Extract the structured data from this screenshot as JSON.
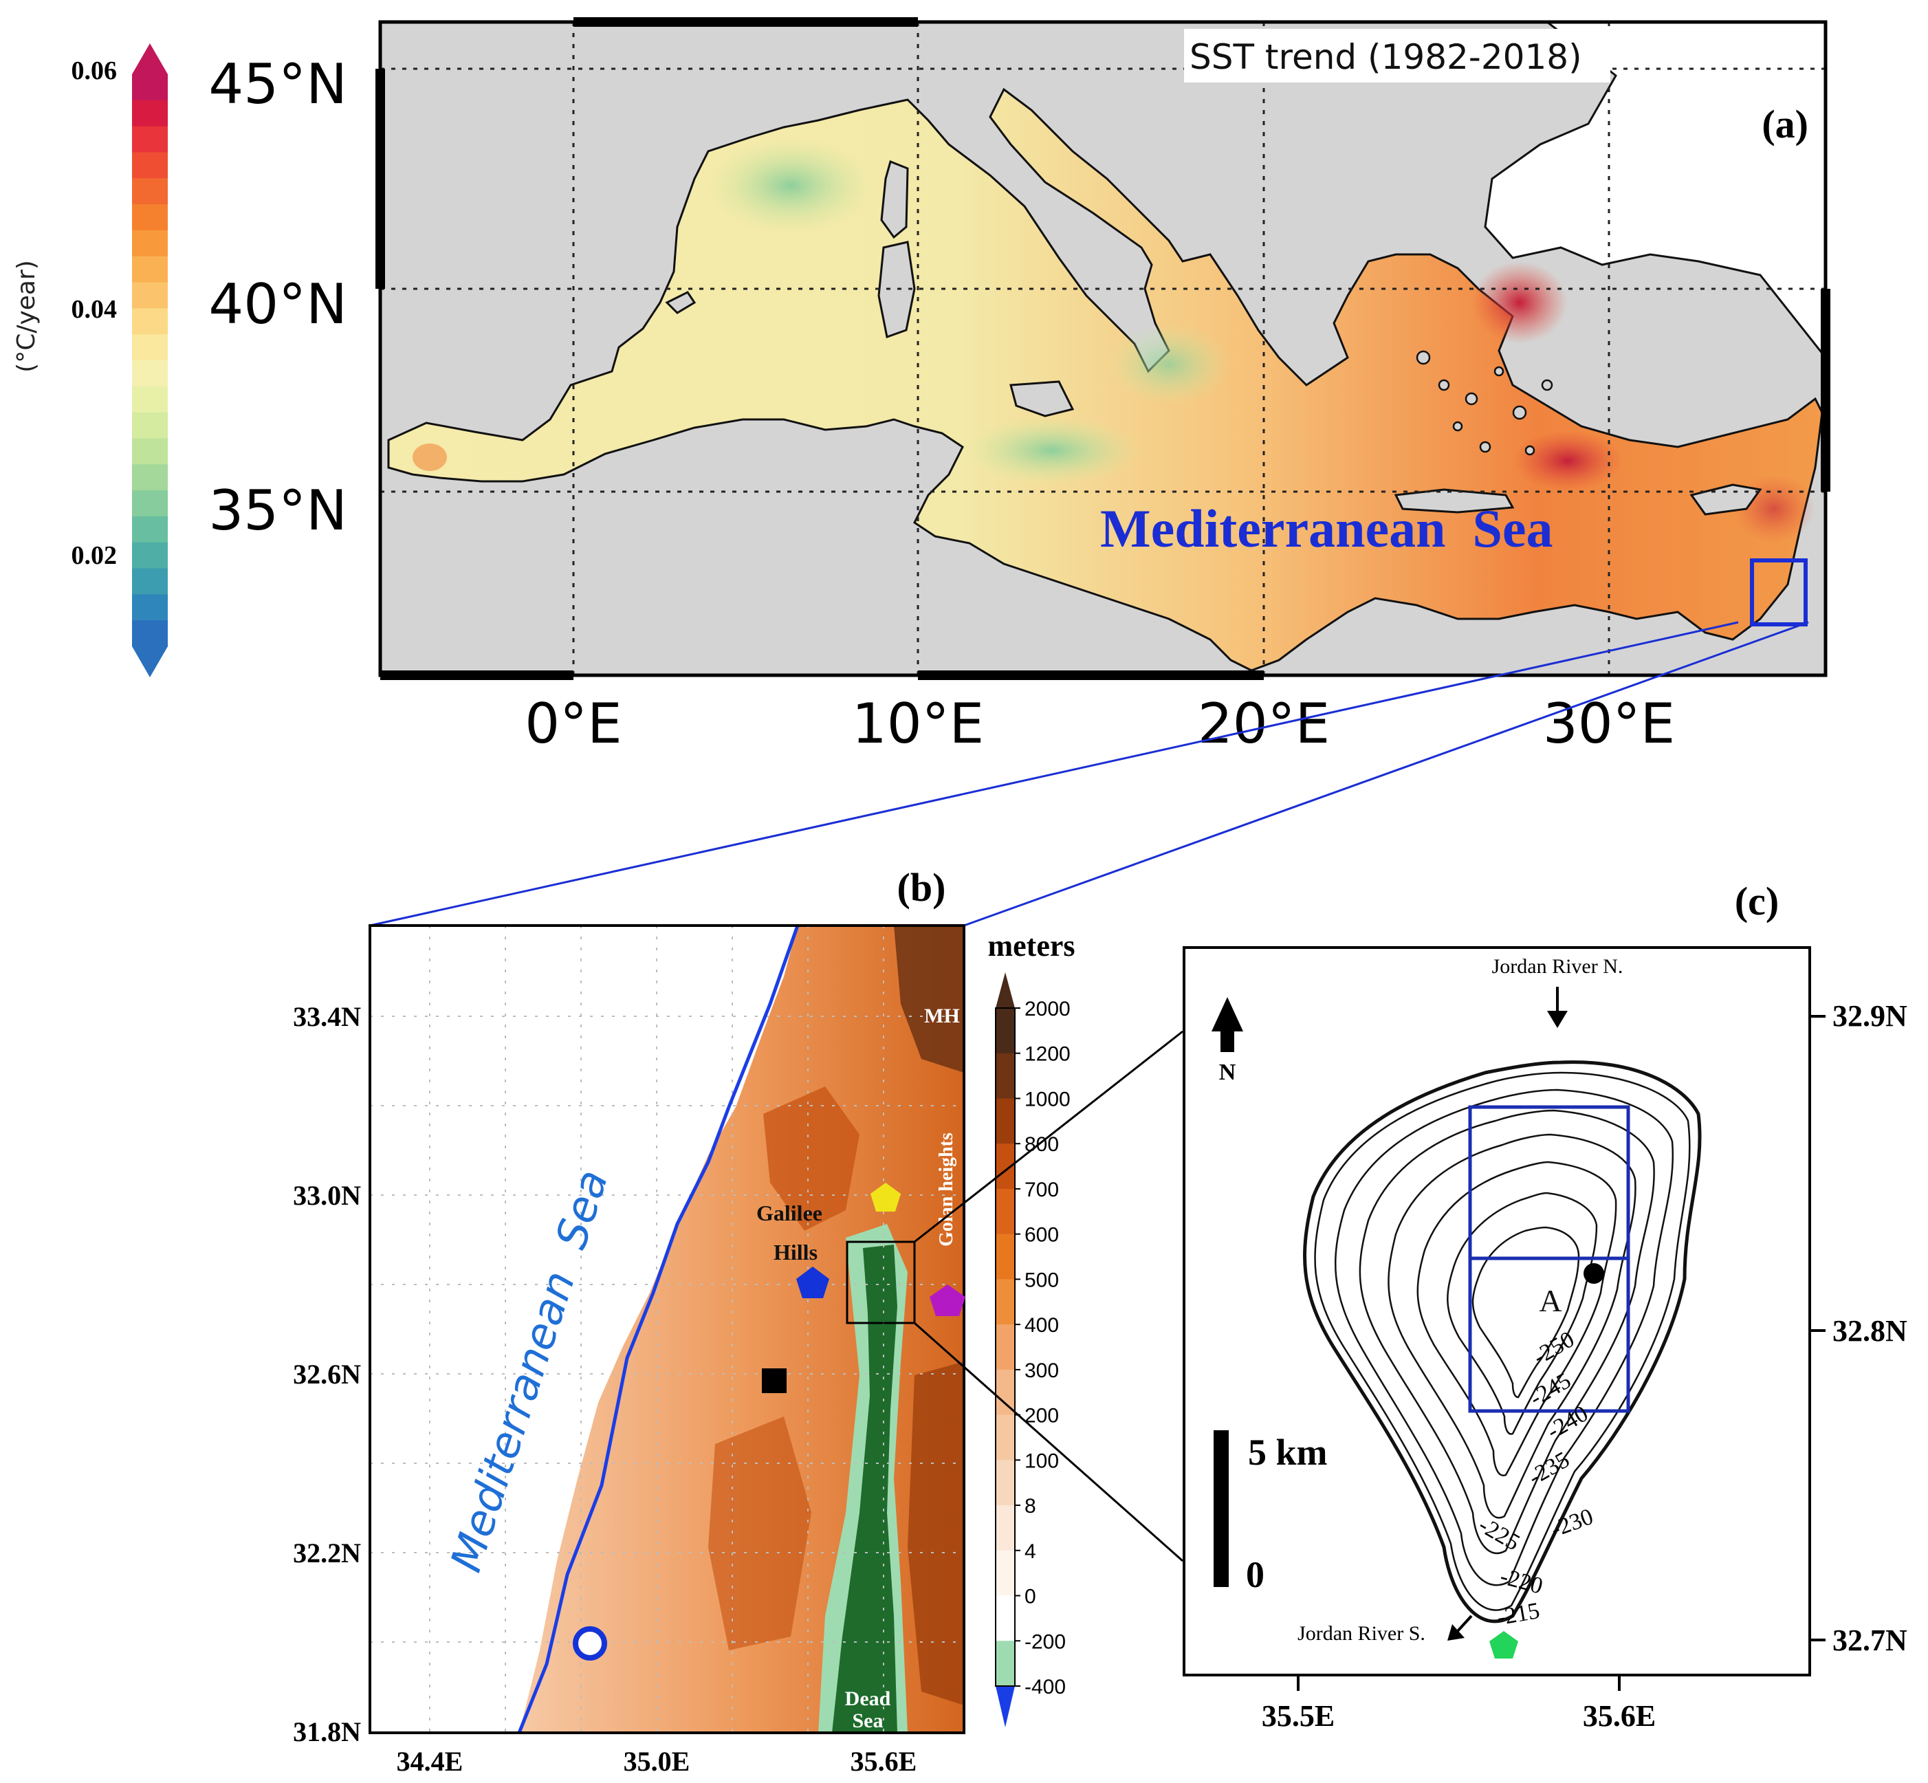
{
  "panel_a": {
    "title": "SST trend (1982-2018)",
    "label": "(a)",
    "sea_label": "Mediterranean  Sea",
    "colorbar": {
      "unit": "(°C/year)",
      "ticks": [
        "0.06",
        "0.04",
        "0.02"
      ],
      "colors": [
        "#c2185b",
        "#d81b40",
        "#e8343a",
        "#f04e33",
        "#f26a30",
        "#f5812f",
        "#f89a3c",
        "#fab154",
        "#fbc46c",
        "#fbd986",
        "#fae89e",
        "#f5f0b0",
        "#e8f0a8",
        "#d4eba0",
        "#bfe39b",
        "#a3d89a",
        "#86cc9c",
        "#68bea0",
        "#4faea6",
        "#3c9cb0",
        "#2f86ba",
        "#2a70bd"
      ]
    },
    "lat_labels": [
      "45°N",
      "40°N",
      "35°N"
    ],
    "lon_labels": [
      "0°E",
      "10°E",
      "20°E",
      "30°E"
    ]
  },
  "panel_b": {
    "label": "(b)",
    "sea_label": "Mediterranean  Sea",
    "lat_labels": [
      "33.4N",
      "33.0N",
      "32.6N",
      "32.2N",
      "31.8N"
    ],
    "lon_labels": [
      "34.4E",
      "35.0E",
      "35.6E"
    ],
    "place_labels": {
      "mh": "MH",
      "galilee_1": "Galilee",
      "galilee_2": "Hills",
      "golan": "Golan heights",
      "dead_1": "Dead",
      "dead_2": "Sea"
    },
    "colorbar": {
      "unit": "meters",
      "ticks": [
        "2000",
        "1200",
        "1000",
        "800",
        "700",
        "600",
        "500",
        "400",
        "300",
        "200",
        "100",
        "8",
        "4",
        "0",
        "-200",
        "-400"
      ],
      "colors": [
        "#4a2a18",
        "#6e3414",
        "#9c3d0c",
        "#c5500f",
        "#db6418",
        "#e8781e",
        "#ef8e3a",
        "#f2a468",
        "#f4b88a",
        "#f6c8a2",
        "#f8d8bd",
        "#fbe8d8",
        "#fdf4ec",
        "#ffffff",
        "#9fdbb0",
        "#1e6b2c"
      ]
    },
    "markers": {
      "yellow": "#f0e31a",
      "blue": "#1433d8",
      "magenta": "#b41ac4",
      "black": "#000000"
    }
  },
  "panel_c": {
    "label": "(c)",
    "north": "N",
    "river_n": "Jordan River N.",
    "river_s": "Jordan River S.",
    "point_label": "A",
    "scale_top": "5 km",
    "scale_bottom": "0",
    "contours": [
      "-250",
      "-245",
      "-240",
      "-235",
      "-230",
      "-225",
      "-220",
      "-215"
    ],
    "lat_labels": [
      "32.9N",
      "32.8N",
      "32.7N"
    ],
    "lon_labels": [
      "35.5E",
      "35.6E"
    ],
    "marker_color": "#22d45a"
  }
}
